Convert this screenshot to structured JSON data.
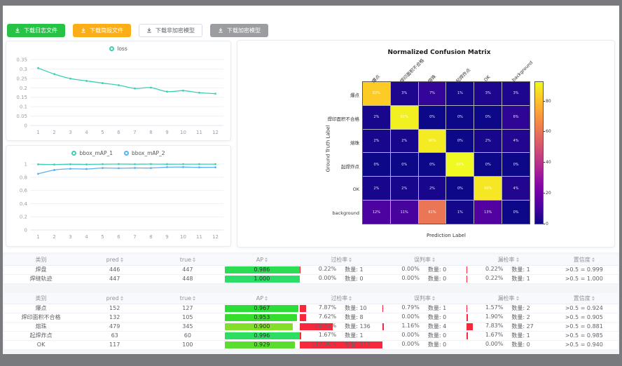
{
  "toolbar": {
    "buttons": [
      {
        "label": "下载日志文件",
        "style": "green"
      },
      {
        "label": "下载简报文件",
        "style": "orange"
      },
      {
        "label": "下载非加密模型",
        "style": "plain"
      },
      {
        "label": "下载加密模型",
        "style": "gray"
      }
    ]
  },
  "chart_data": [
    {
      "id": "loss",
      "type": "line",
      "legend": [
        "loss"
      ],
      "legend_position": "top",
      "x": [
        1,
        2,
        3,
        4,
        5,
        6,
        7,
        8,
        9,
        10,
        11,
        12
      ],
      "series": [
        {
          "name": "loss",
          "color": "#3bcfb4",
          "values": [
            0.305,
            0.273,
            0.249,
            0.237,
            0.225,
            0.214,
            0.197,
            0.201,
            0.18,
            0.185,
            0.174,
            0.169
          ]
        }
      ],
      "ylim": [
        0,
        0.35
      ],
      "yticks": [
        0,
        0.05,
        0.1,
        0.15,
        0.2,
        0.25,
        0.3,
        0.35
      ],
      "grid": true
    },
    {
      "id": "bbox_map",
      "type": "line",
      "legend": [
        "bbox_mAP_1",
        "bbox_mAP_2"
      ],
      "legend_position": "top",
      "x": [
        1,
        2,
        3,
        4,
        5,
        6,
        7,
        8,
        9,
        10,
        11,
        12
      ],
      "series": [
        {
          "name": "bbox_mAP_1",
          "color": "#3bcfb4",
          "values": [
            0.996,
            0.993,
            0.998,
            0.995,
            0.999,
            1.0,
            0.999,
            1.0,
            0.998,
            0.999,
            0.999,
            0.999
          ]
        },
        {
          "name": "bbox_mAP_2",
          "color": "#5ab1ef",
          "values": [
            0.852,
            0.91,
            0.928,
            0.925,
            0.94,
            0.937,
            0.941,
            0.94,
            0.953,
            0.954,
            0.95,
            0.951
          ]
        }
      ],
      "ylim": [
        0,
        1
      ],
      "yticks": [
        0,
        0.2,
        0.4,
        0.6,
        0.8,
        1
      ],
      "grid": true
    },
    {
      "id": "confusion",
      "type": "heatmap",
      "title": "Normalized Confusion Matrix",
      "xlabel": "Prediction Label",
      "ylabel": "Ground Truth Label",
      "labels": [
        "爆点",
        "焊印面积不合格",
        "熔珠",
        "起焊炸点",
        "OK",
        "background"
      ],
      "matrix_pct": [
        [
          83,
          3,
          7,
          1,
          3,
          3
        ],
        [
          2,
          91,
          0,
          0,
          0,
          6
        ],
        [
          2,
          2,
          90,
          0,
          2,
          4
        ],
        [
          0,
          0,
          0,
          93,
          0,
          0
        ],
        [
          2,
          2,
          2,
          0,
          89,
          4
        ],
        [
          12,
          11,
          61,
          1,
          13,
          0
        ]
      ],
      "vmax": 93,
      "colormap": "plasma",
      "colorbar_ticks": [
        0,
        20,
        40,
        60,
        80
      ]
    }
  ],
  "tables": {
    "headers": [
      {
        "label": "类别",
        "sortable": false
      },
      {
        "label": "pred",
        "sortable": true
      },
      {
        "label": "true",
        "sortable": true
      },
      {
        "label": "AP",
        "sortable": true
      },
      {
        "label": "过检率",
        "sortable": true
      },
      {
        "label": "误判率",
        "sortable": true
      },
      {
        "label": "漏检率",
        "sortable": true
      },
      {
        "label": "置信度",
        "sortable": true
      }
    ],
    "table1_rows": [
      {
        "name": "焊盘",
        "pred": "446",
        "true": "447",
        "ap": "0.986",
        "ap_val": 0.986,
        "over_pct": "0.22%",
        "over_count": "数量: 1",
        "over_val": 0.22,
        "mis_pct": "0.00%",
        "mis_count": "数量: 0",
        "mis_val": 0,
        "miss_pct": "0.22%",
        "miss_count": "数量: 1",
        "miss_val": 0.22,
        "conf": ">0.5 = 0.999"
      },
      {
        "name": "焊缝轨迹",
        "pred": "447",
        "true": "448",
        "ap": "1.000",
        "ap_val": 1.0,
        "over_pct": "0.00%",
        "over_count": "数量: 0",
        "over_val": 0,
        "mis_pct": "0.00%",
        "mis_count": "数量: 0",
        "mis_val": 0,
        "miss_pct": "0.22%",
        "miss_count": "数量: 1",
        "miss_val": 0.22,
        "conf": ">0.5 = 1.000"
      }
    ],
    "table2_rows": [
      {
        "name": "爆点",
        "pred": "152",
        "true": "127",
        "ap": "0.967",
        "ap_val": 0.967,
        "over_pct": "7.87%",
        "over_count": "数量: 10",
        "over_val": 7.87,
        "mis_pct": "0.79%",
        "mis_count": "数量: 1",
        "mis_val": 0.79,
        "miss_pct": "1.57%",
        "miss_count": "数量: 2",
        "miss_val": 1.57,
        "conf": ">0.5 = 0.924"
      },
      {
        "name": "焊印面积不合格",
        "pred": "132",
        "true": "105",
        "ap": "0.953",
        "ap_val": 0.953,
        "over_pct": "7.62%",
        "over_count": "数量: 8",
        "over_val": 7.62,
        "mis_pct": "0.00%",
        "mis_count": "数量: 0",
        "mis_val": 0,
        "miss_pct": "1.90%",
        "miss_count": "数量: 2",
        "miss_val": 1.9,
        "conf": ">0.5 = 0.905"
      },
      {
        "name": "熔珠",
        "pred": "479",
        "true": "345",
        "ap": "0.900",
        "ap_val": 0.9,
        "over_pct": "39.42%",
        "over_count": "数量: 136",
        "over_val": 39.42,
        "mis_pct": "1.16%",
        "mis_count": "数量: 4",
        "mis_val": 1.16,
        "miss_pct": "7.83%",
        "miss_count": "数量: 27",
        "miss_val": 7.83,
        "conf": ">0.5 = 0.881"
      },
      {
        "name": "起焊炸点",
        "pred": "63",
        "true": "60",
        "ap": "0.996",
        "ap_val": 0.996,
        "over_pct": "1.67%",
        "over_count": "数量: 1",
        "over_val": 1.67,
        "mis_pct": "0.00%",
        "mis_count": "数量: 0",
        "mis_val": 0,
        "miss_pct": "1.67%",
        "miss_count": "数量: 1",
        "miss_val": 1.67,
        "conf": ">0.5 = 0.985"
      },
      {
        "name": "OK",
        "pred": "117",
        "true": "100",
        "ap": "0.929",
        "ap_val": 0.929,
        "over_pct": "117.00%",
        "over_count": "数量: 117",
        "over_val": 117,
        "mis_pct": "0.00%",
        "mis_count": "数量: 0",
        "mis_val": 0,
        "miss_pct": "0.00%",
        "miss_count": "数量: 0",
        "miss_val": 0,
        "conf": ">0.5 = 0.940"
      }
    ]
  }
}
